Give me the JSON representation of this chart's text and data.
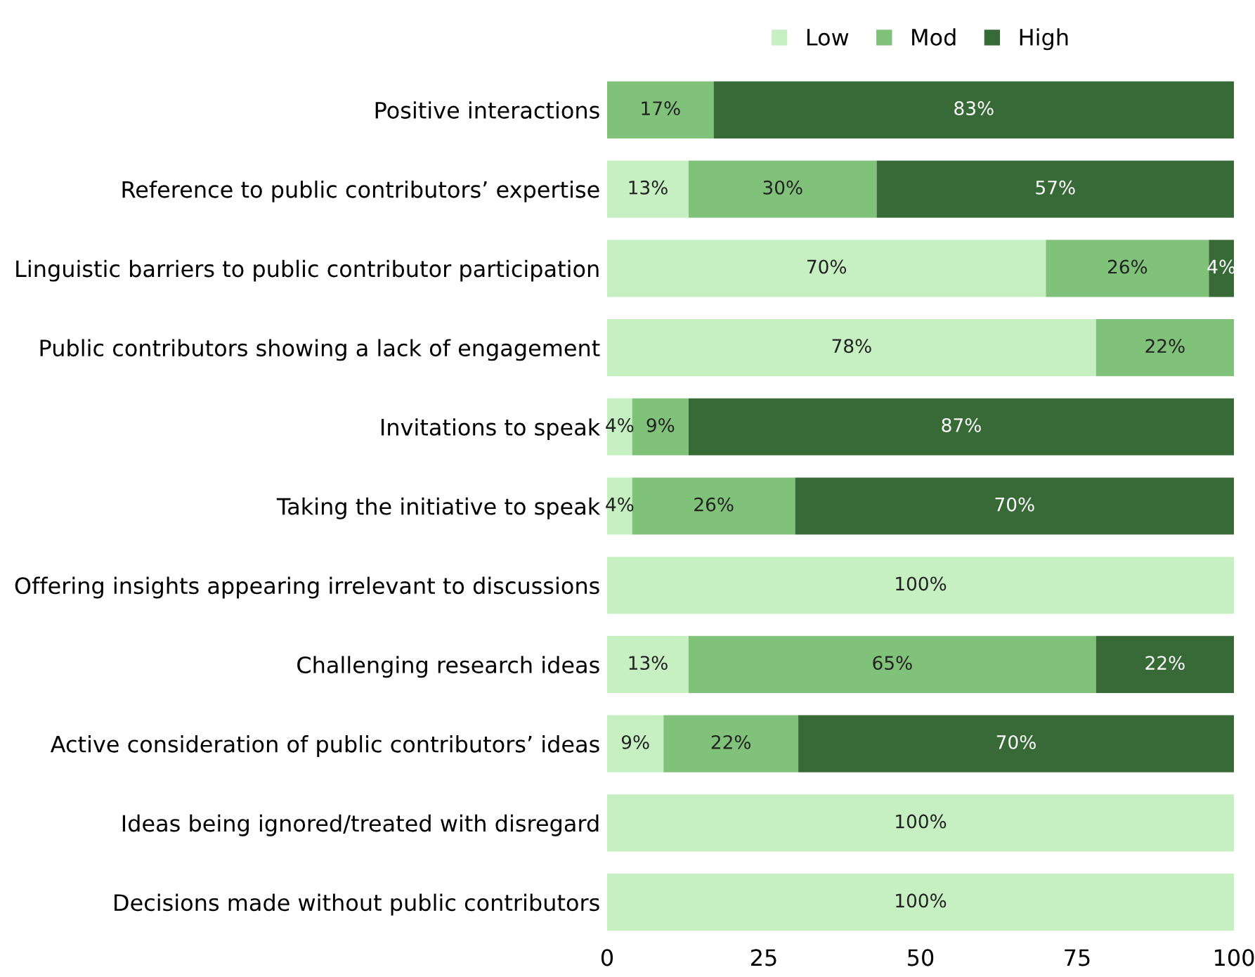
{
  "chart_data": {
    "type": "bar",
    "orientation": "horizontal",
    "stacked": true,
    "categories": [
      "Positive interactions",
      "Reference to public contributors’ expertise",
      "Linguistic barriers to public contributor participation",
      "Public contributors showing a lack of engagement",
      "Invitations to speak",
      "Taking the initiative to speak",
      "Offering insights appearing irrelevant to discussions",
      "Challenging research ideas",
      "Active consideration of public contributors’ ideas",
      "Ideas being ignored/treated with disregard",
      "Decisions made without public contributors"
    ],
    "series": [
      {
        "name": "Low",
        "color": "#c6efc2",
        "values": [
          null,
          13,
          70,
          78,
          4,
          4,
          100,
          13,
          9,
          100,
          100
        ],
        "value_labels": [
          null,
          "13%",
          "70%",
          "78%",
          "4%",
          "4%",
          "100%",
          "13%",
          "9%",
          "100%",
          "100%"
        ]
      },
      {
        "name": "Mod",
        "color": "#80c27a",
        "values": [
          17,
          30,
          26,
          22,
          9,
          26,
          null,
          65,
          21.5,
          null,
          null
        ],
        "value_labels": [
          "17%",
          "30%",
          "26%",
          "22%",
          "9%",
          "26%",
          null,
          "65%",
          "22%",
          null,
          null
        ]
      },
      {
        "name": "High",
        "color": "#386a38",
        "values": [
          83,
          57,
          4,
          null,
          87,
          70,
          null,
          22,
          69.5,
          null,
          null
        ],
        "value_labels": [
          "83%",
          "57%",
          "4%",
          null,
          "87%",
          "70%",
          null,
          "22%",
          "70%",
          null,
          null
        ]
      }
    ],
    "xlim": [
      0,
      100
    ],
    "xticks": [
      0,
      25,
      50,
      75,
      100
    ],
    "grid": false,
    "legend": "top"
  }
}
